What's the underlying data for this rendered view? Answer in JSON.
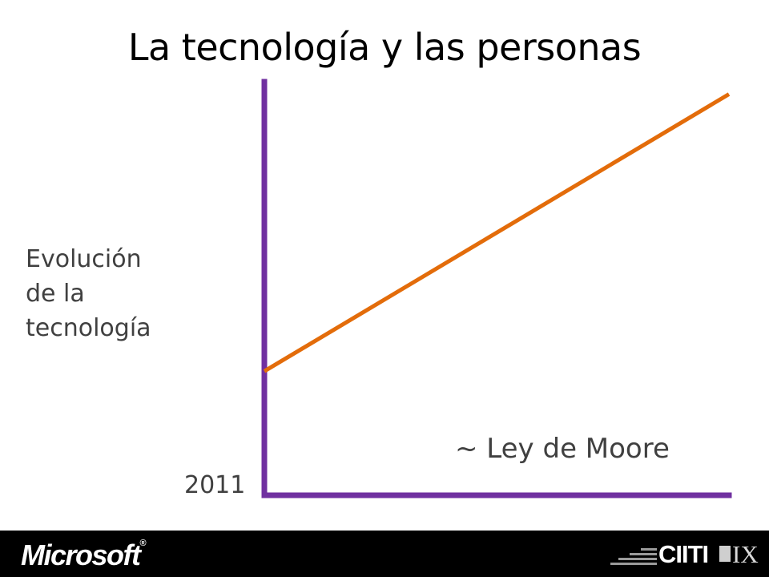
{
  "slide": {
    "title": "La tecnología y las personas"
  },
  "chart_data": {
    "type": "line",
    "ylabel_lines": [
      "Evolución",
      "de la",
      "tecnología"
    ],
    "x_start_label": "2011",
    "annotation": "~ Ley de Moore",
    "grid": false,
    "series": [
      {
        "values": [
          {
            "x": 0,
            "y": 0.3
          },
          {
            "x": 1,
            "y": 0.97
          }
        ]
      }
    ],
    "xlim": [
      0,
      1
    ],
    "ylim": [
      0,
      1
    ],
    "colors": {
      "axis": "#7030A0",
      "line": "#E36C0A"
    }
  },
  "footer": {
    "left_logo_text": "Microsoft",
    "left_logo_mark": "®",
    "right_logo_text_a": "CIITI",
    "right_logo_text_b": "IX",
    "background": "#000000"
  }
}
